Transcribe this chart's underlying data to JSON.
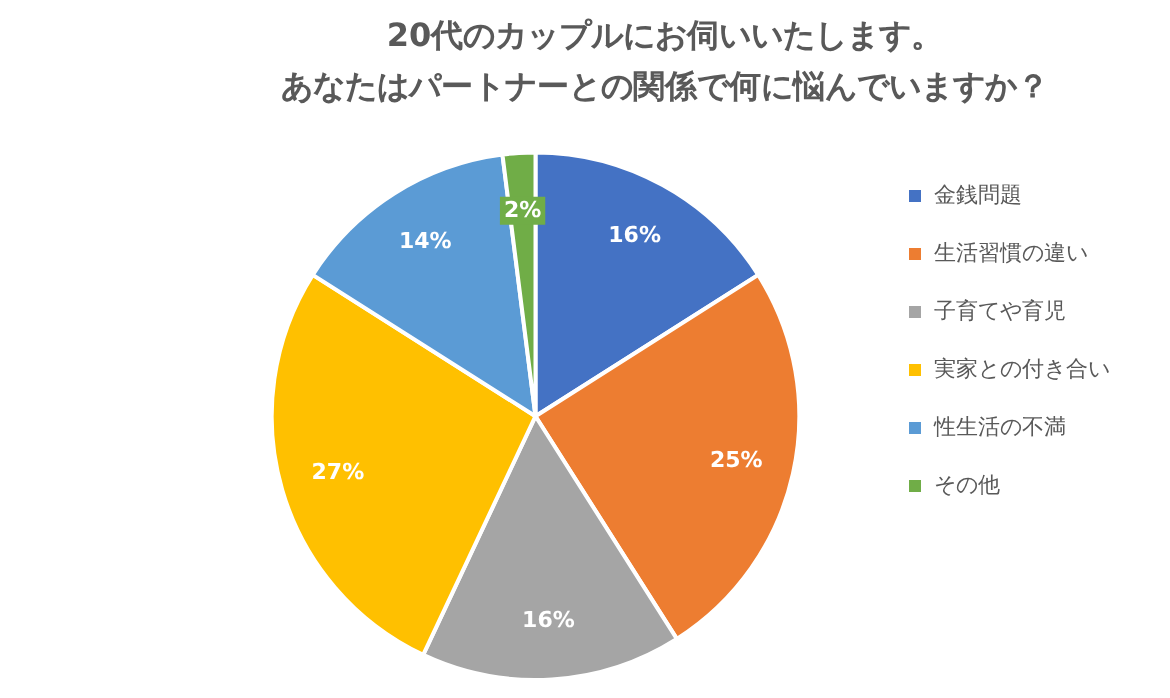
{
  "chart_data": {
    "type": "pie",
    "title": "20代のカップルにお伺いいたします。",
    "subtitle": "あなたはパートナーとの関係で何に悩んでいますか？",
    "categories": [
      "金銭問題",
      "生活習慣の違い",
      "子育てや育児",
      "実家との付き合い",
      "性生活の不満",
      "その他"
    ],
    "values": [
      16,
      25,
      16,
      27,
      14,
      2
    ],
    "value_labels": [
      "16%",
      "25%",
      "16%",
      "27%",
      "14%",
      "2%"
    ],
    "colors": [
      "#4472c4",
      "#ed7d31",
      "#a5a5a5",
      "#ffc000",
      "#5b9bd5",
      "#70ad47"
    ],
    "legend": "right"
  }
}
